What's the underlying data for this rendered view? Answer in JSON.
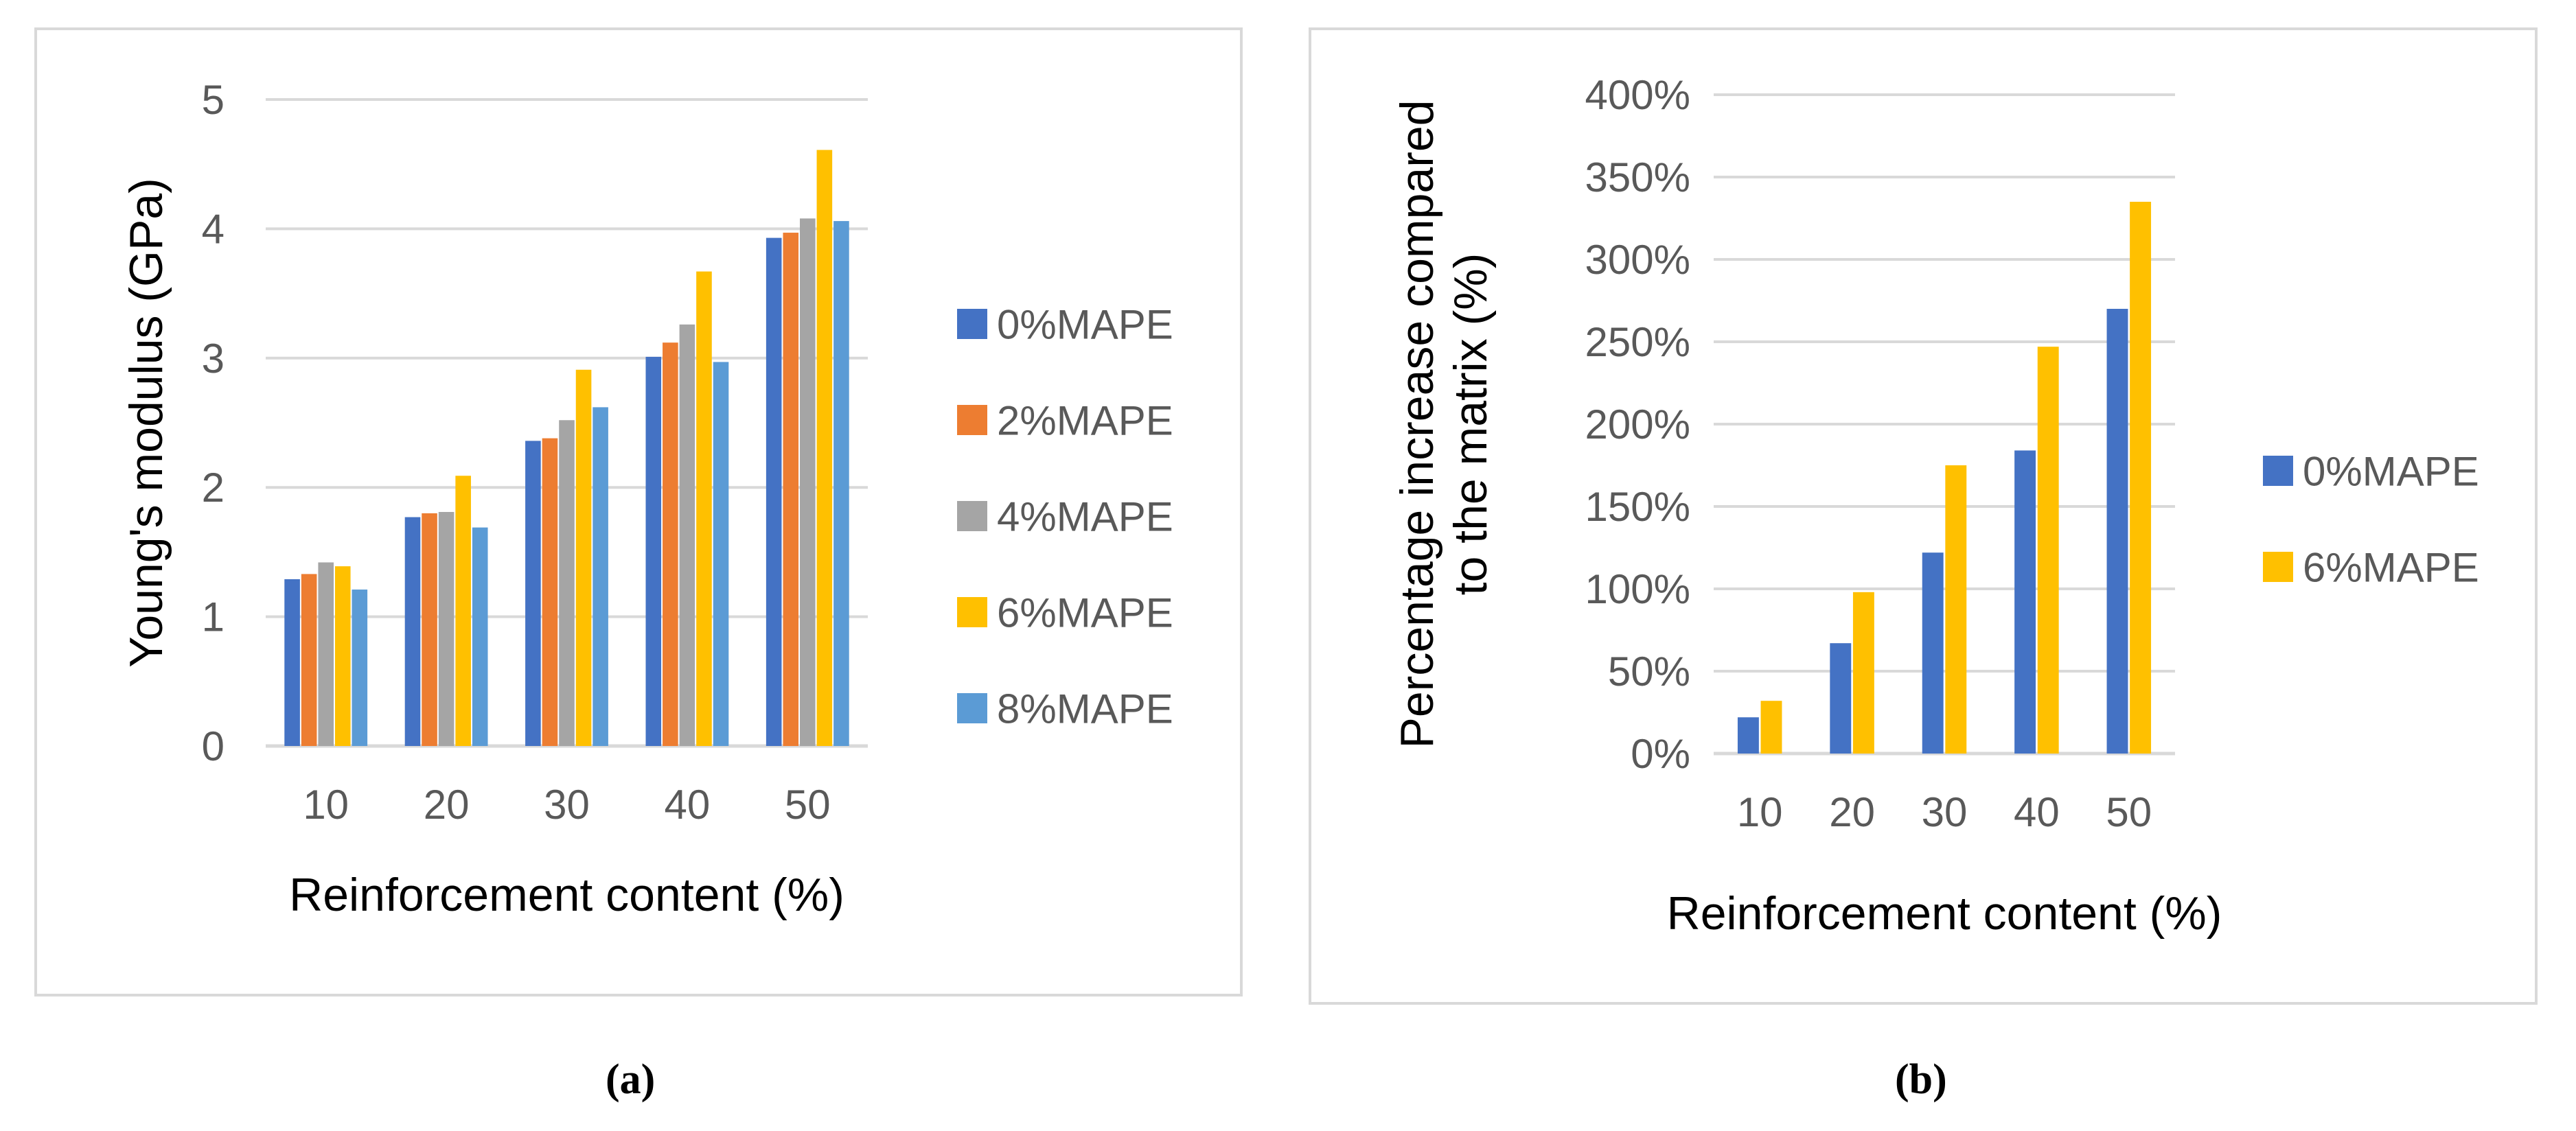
{
  "captions": [
    "(a)",
    "(b)"
  ],
  "chart_data": [
    {
      "type": "bar",
      "xlabel": "Reinforcement content (%)",
      "ylabel": "Young's modulus (GPa)",
      "categories": [
        "10",
        "20",
        "30",
        "40",
        "50"
      ],
      "ylim": [
        0,
        5
      ],
      "yticks": [
        0,
        1,
        2,
        3,
        4,
        5
      ],
      "ytick_labels": [
        "0",
        "1",
        "2",
        "3",
        "4",
        "5"
      ],
      "grid": true,
      "legend_position": "right",
      "series": [
        {
          "name": "0%MAPE",
          "color": "#4472C4",
          "values": [
            1.29,
            1.77,
            2.36,
            3.01,
            3.93
          ]
        },
        {
          "name": "2%MAPE",
          "color": "#ED7D31",
          "values": [
            1.33,
            1.8,
            2.38,
            3.12,
            3.97
          ]
        },
        {
          "name": "4%MAPE",
          "color": "#A5A5A5",
          "values": [
            1.42,
            1.81,
            2.52,
            3.26,
            4.08
          ]
        },
        {
          "name": "6%MAPE",
          "color": "#FFC000",
          "values": [
            1.39,
            2.09,
            2.91,
            3.67,
            4.61
          ]
        },
        {
          "name": "8%MAPE",
          "color": "#5B9BD5",
          "values": [
            1.21,
            1.69,
            2.62,
            2.97,
            4.06
          ]
        }
      ]
    },
    {
      "type": "bar",
      "xlabel": "Reinforcement content (%)",
      "ylabel": "Percentage increase compared to the matrix (%)",
      "ylabel_lines": [
        "Percentage increase compared",
        "to the matrix (%)"
      ],
      "categories": [
        "10",
        "20",
        "30",
        "40",
        "50"
      ],
      "ylim": [
        0,
        400
      ],
      "yticks": [
        0,
        50,
        100,
        150,
        200,
        250,
        300,
        350,
        400
      ],
      "ytick_labels": [
        "0%",
        "50%",
        "100%",
        "150%",
        "200%",
        "250%",
        "300%",
        "350%",
        "400%"
      ],
      "grid": true,
      "legend_position": "right",
      "series": [
        {
          "name": "0%MAPE",
          "color": "#4472C4",
          "values": [
            22,
            67,
            122,
            184,
            270
          ]
        },
        {
          "name": "6%MAPE",
          "color": "#FFC000",
          "values": [
            32,
            98,
            175,
            247,
            335
          ]
        }
      ]
    }
  ]
}
